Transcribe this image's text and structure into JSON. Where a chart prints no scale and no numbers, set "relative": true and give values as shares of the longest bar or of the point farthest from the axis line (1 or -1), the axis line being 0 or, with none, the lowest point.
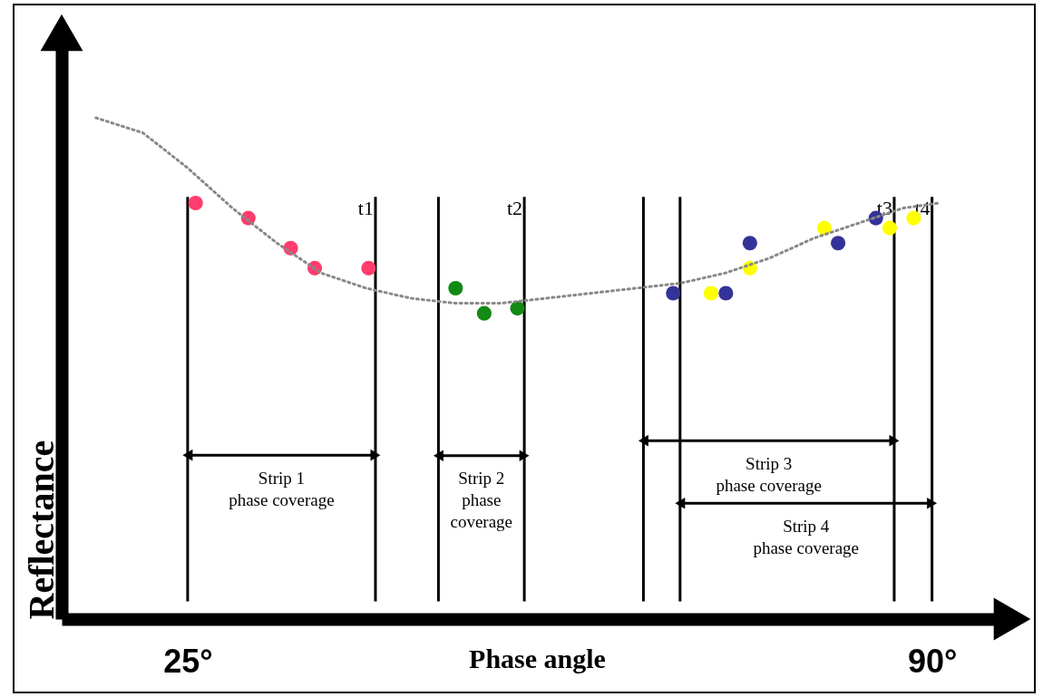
{
  "chart_data": {
    "type": "scatter",
    "relative": true,
    "xlabel": "Phase angle",
    "ylabel": "Reflectance",
    "xlim": [
      14,
      97
    ],
    "xticks": [
      {
        "value": 25,
        "label": "25°"
      },
      {
        "value": 90,
        "label": "90°"
      }
    ],
    "series": [
      {
        "marker": "circle",
        "color": "#ff3d6e",
        "x": [
          25.7,
          30.3,
          34.0,
          36.1,
          40.8
        ],
        "values": [
          0.83,
          0.8,
          0.74,
          0.7,
          0.7
        ]
      },
      {
        "marker": "circle",
        "color": "#138a13",
        "x": [
          48.4,
          50.9,
          53.8
        ],
        "values": [
          0.66,
          0.61,
          0.62
        ]
      },
      {
        "marker": "circle",
        "color": "#333399",
        "x": [
          67.4,
          72.0,
          74.1,
          81.8,
          85.1
        ],
        "values": [
          0.65,
          0.65,
          0.75,
          0.75,
          0.8
        ]
      },
      {
        "marker": "circle",
        "color": "#ffff00",
        "x": [
          70.7,
          74.1,
          80.6,
          86.3,
          88.4
        ],
        "values": [
          0.65,
          0.7,
          0.78,
          0.78,
          0.8
        ]
      },
      {
        "type": "line",
        "color": "#888888",
        "line_style": "dotted",
        "x": [
          17.0,
          21.1,
          25.0,
          28.9,
          32.8,
          36.7,
          40.6,
          44.5,
          48.4,
          52.3,
          56.3,
          60.2,
          64.1,
          68.0,
          71.9,
          75.8,
          79.7,
          83.6,
          87.5,
          90.6
        ],
        "values": [
          1.0,
          0.97,
          0.9,
          0.82,
          0.75,
          0.69,
          0.66,
          0.64,
          0.63,
          0.63,
          0.64,
          0.65,
          0.66,
          0.67,
          0.69,
          0.72,
          0.76,
          0.79,
          0.82,
          0.83
        ]
      }
    ],
    "ref_lines": [
      {
        "axis": "x",
        "value": 25
      },
      {
        "axis": "x",
        "value": 41.4,
        "label": "t1"
      },
      {
        "axis": "x",
        "value": 46.9
      },
      {
        "axis": "x",
        "value": 54.4,
        "label": "t2"
      },
      {
        "axis": "x",
        "value": 64.8
      },
      {
        "axis": "x",
        "value": 68.0
      },
      {
        "axis": "x",
        "value": 86.7,
        "label": "t3"
      },
      {
        "axis": "x",
        "value": 90,
        "label": "t4"
      }
    ],
    "annotations": [
      "Strip 1\nphase coverage",
      "Strip 2\nphase\ncoverage",
      "Strip 3\nphase coverage",
      "Strip 4\nphase coverage"
    ]
  }
}
